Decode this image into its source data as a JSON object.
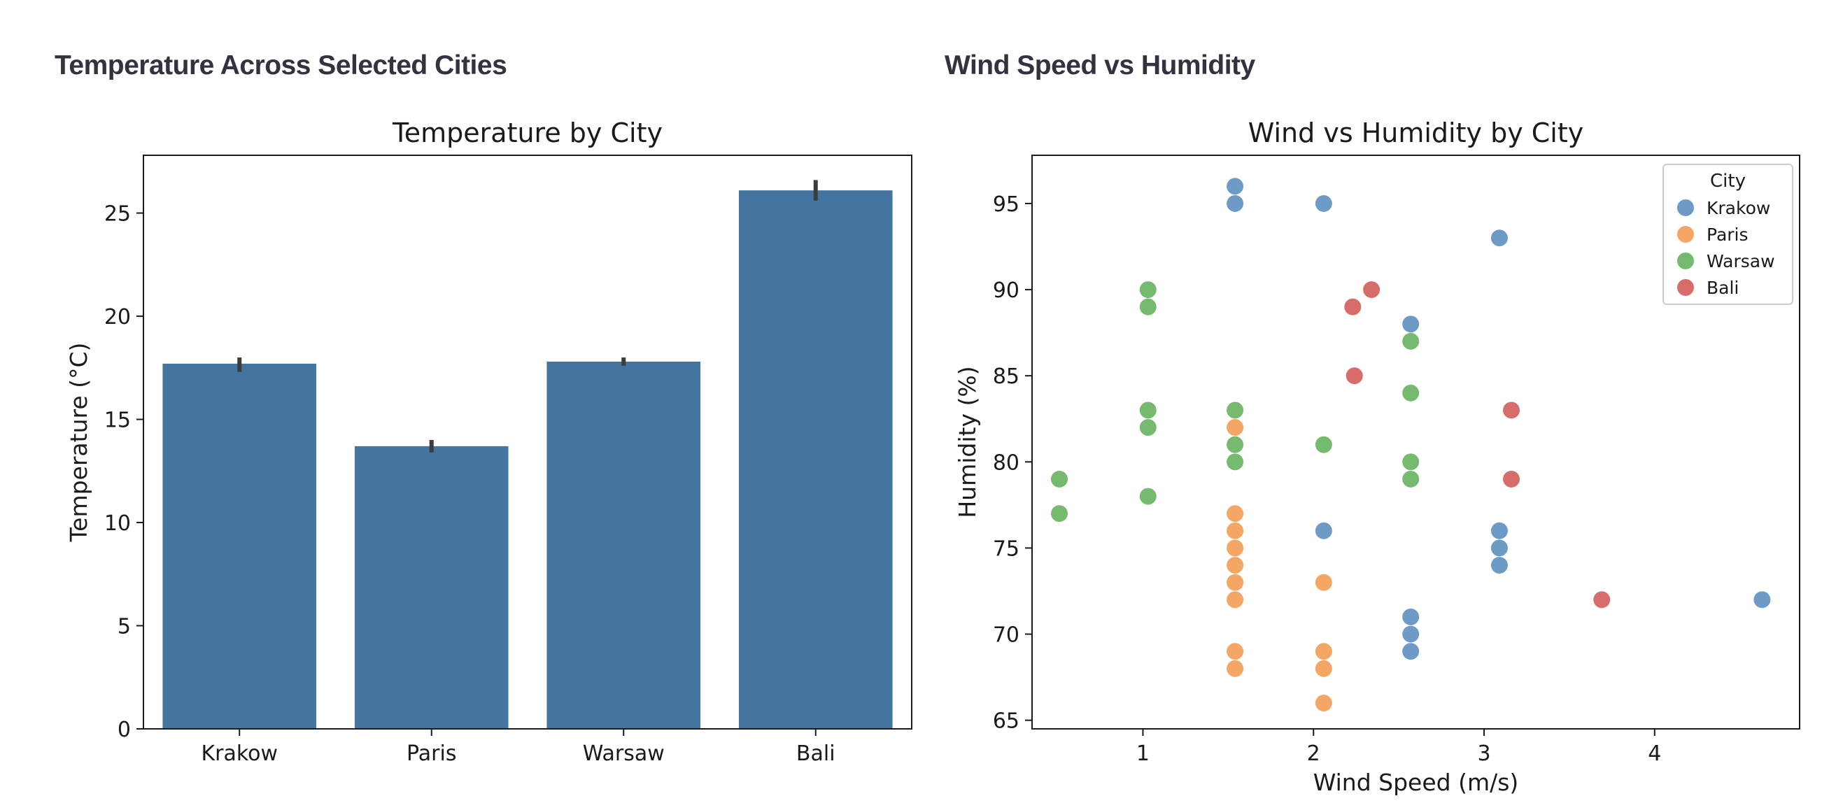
{
  "page": {
    "left_heading": "Temperature Across Selected Cities",
    "right_heading": "Wind Speed vs Humidity"
  },
  "chart_data": [
    {
      "type": "bar",
      "title": "Temperature by City",
      "xlabel": "",
      "ylabel": "Temperature (°C)",
      "ylim": [
        0,
        27.8
      ],
      "yticks": [
        0,
        5,
        10,
        15,
        20,
        25
      ],
      "grid": false,
      "categories": [
        "Krakow",
        "Paris",
        "Warsaw",
        "Bali"
      ],
      "values": [
        17.7,
        13.7,
        17.8,
        26.1
      ],
      "error_low": [
        17.3,
        13.4,
        17.6,
        25.6
      ],
      "error_high": [
        18.0,
        14.0,
        18.0,
        26.6
      ],
      "colors": {
        "bar": "#4474a0",
        "error": "#3c3c3c"
      }
    },
    {
      "type": "scatter",
      "title": "Wind vs Humidity by City",
      "xlabel": "Wind Speed (m/s)",
      "ylabel": "Humidity (%)",
      "xlim": [
        0.35,
        4.85
      ],
      "ylim": [
        64.5,
        97.8
      ],
      "xticks": [
        1,
        2,
        3,
        4
      ],
      "yticks": [
        65,
        70,
        75,
        80,
        85,
        90,
        95
      ],
      "grid": false,
      "legend": {
        "title": "City",
        "position": "top-right"
      },
      "series": [
        {
          "name": "Krakow",
          "color": "#3474b0",
          "x": [
            1.54,
            1.54,
            2.06,
            3.09,
            2.57,
            2.06,
            3.09,
            3.09,
            3.09,
            2.57,
            2.57,
            2.57,
            4.63
          ],
          "y": [
            96,
            95,
            95,
            93,
            88,
            76,
            76,
            75,
            74,
            71,
            70,
            69,
            72
          ]
        },
        {
          "name": "Paris",
          "color": "#f08428",
          "x": [
            1.54,
            1.54,
            1.54,
            1.54,
            1.54,
            1.54,
            1.54,
            1.54,
            1.54,
            2.06,
            2.06,
            2.06,
            2.06
          ],
          "y": [
            82,
            77,
            76,
            75,
            74,
            73,
            72,
            69,
            68,
            73,
            69,
            68,
            66
          ]
        },
        {
          "name": "Warsaw",
          "color": "#40a038",
          "x": [
            0.51,
            0.51,
            1.03,
            1.03,
            1.03,
            1.03,
            1.03,
            1.54,
            1.54,
            1.54,
            2.06,
            2.57,
            2.57,
            2.57,
            2.57
          ],
          "y": [
            79,
            77,
            90,
            89,
            83,
            82,
            78,
            83,
            81,
            80,
            81,
            87,
            84,
            80,
            79
          ]
        },
        {
          "name": "Bali",
          "color": "#c83430",
          "x": [
            2.34,
            2.23,
            2.24,
            3.16,
            3.16,
            3.69
          ],
          "y": [
            90,
            89,
            85,
            83,
            79,
            72
          ]
        }
      ]
    }
  ]
}
